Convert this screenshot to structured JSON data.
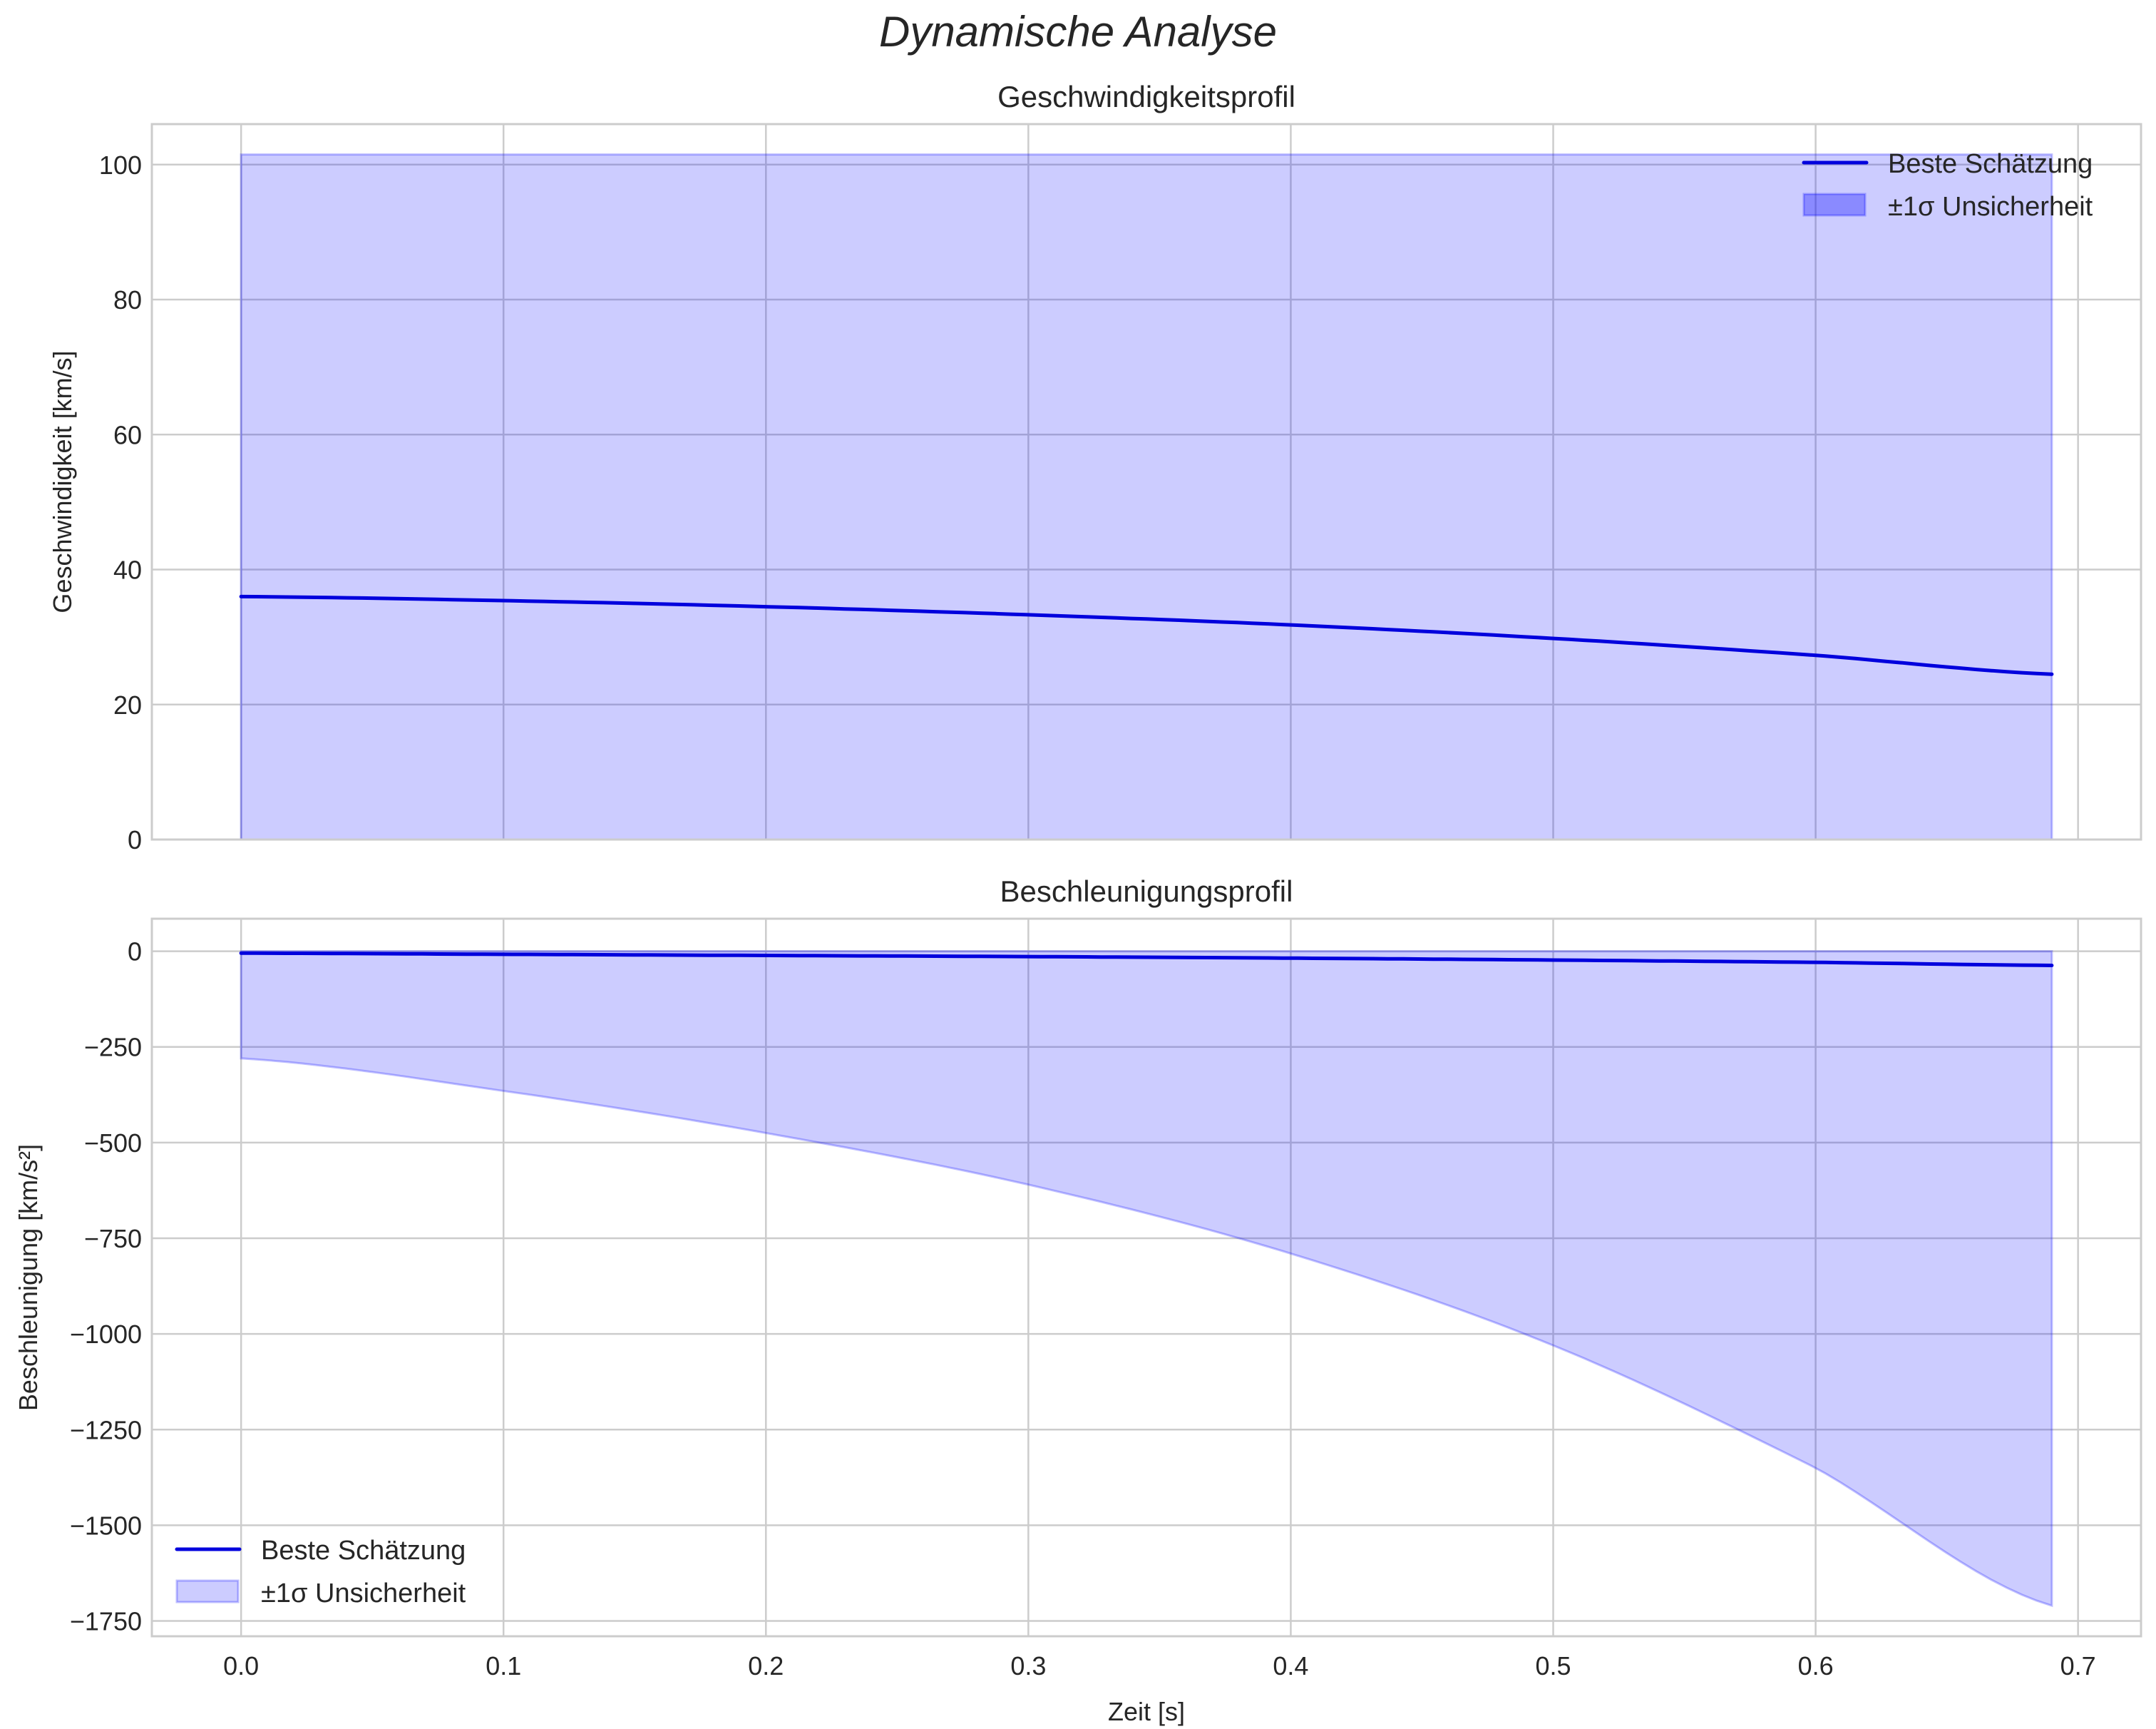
{
  "figure": {
    "suptitle": "Dynamische Analyse",
    "xlabel": "Zeit [s]",
    "x_ticks": [
      0.0,
      0.1,
      0.2,
      0.3,
      0.4,
      0.5,
      0.6,
      0.7
    ],
    "x_tick_labels": [
      "0.0",
      "0.1",
      "0.2",
      "0.3",
      "0.4",
      "0.5",
      "0.6",
      "0.7"
    ],
    "colors": {
      "line": "#0000dd",
      "band_fill": "#0000ff",
      "band_alpha": 0.2,
      "grid": "#cccccc",
      "text": "#262626"
    }
  },
  "chart_data": [
    {
      "type": "line",
      "title": "Geschwindigkeitsprofil",
      "xlabel": "",
      "ylabel": "Geschwindigkeit [km/s]",
      "xlim": [
        -0.034,
        0.724
      ],
      "ylim": [
        0,
        106
      ],
      "y_ticks": [
        0,
        20,
        40,
        60,
        80,
        100
      ],
      "y_tick_labels": [
        "0",
        "20",
        "40",
        "60",
        "80",
        "100"
      ],
      "grid": true,
      "legend_position": "upper right",
      "x": [
        0.0,
        0.1,
        0.2,
        0.3,
        0.4,
        0.5,
        0.6,
        0.69
      ],
      "series": [
        {
          "name": "Beste Schätzung",
          "kind": "line",
          "values": [
            36.0,
            35.4,
            34.5,
            33.3,
            31.8,
            29.8,
            27.3,
            24.5
          ]
        },
        {
          "name": "±1σ Unsicherheit",
          "kind": "band",
          "lower": [
            0,
            0,
            0,
            0,
            0,
            0,
            0,
            0
          ],
          "upper": [
            101.5,
            101.5,
            101.5,
            101.5,
            101.5,
            101.5,
            101.5,
            101.5
          ]
        }
      ],
      "legend": [
        "Beste Schätzung",
        "±1σ Unsicherheit"
      ]
    },
    {
      "type": "line",
      "title": "Beschleunigungsprofil",
      "xlabel": "Zeit [s]",
      "ylabel": "Beschleunigung [km/s²]",
      "xlim": [
        -0.034,
        0.724
      ],
      "ylim": [
        -1790,
        85
      ],
      "y_ticks": [
        0,
        -250,
        -500,
        -750,
        -1000,
        -1250,
        -1500,
        -1750
      ],
      "y_tick_labels": [
        "0",
        "−250",
        "−500",
        "−750",
        "−1000",
        "−1250",
        "−1500",
        "−1750"
      ],
      "grid": true,
      "legend_position": "lower left",
      "x": [
        0.0,
        0.1,
        0.2,
        0.3,
        0.4,
        0.5,
        0.6,
        0.69
      ],
      "series": [
        {
          "name": "Beste Schätzung",
          "kind": "line",
          "values": [
            -5,
            -8,
            -11,
            -14,
            -18,
            -23,
            -29,
            -37
          ]
        },
        {
          "name": "±1σ Unsicherheit",
          "kind": "band",
          "lower": [
            -280,
            -365,
            -475,
            -610,
            -790,
            -1030,
            -1350,
            -1710
          ],
          "upper": [
            0,
            0,
            0,
            0,
            0,
            0,
            0,
            0
          ]
        }
      ],
      "legend": [
        "Beste Schätzung",
        "±1σ Unsicherheit"
      ]
    }
  ]
}
